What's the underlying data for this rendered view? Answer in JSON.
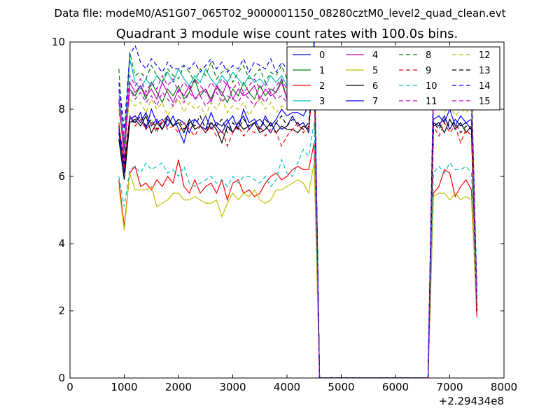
{
  "suptitle": "Data file: modeM0/AS1G07_065T02_9000001150_08280cztM0_level2_quad_clean.evt",
  "chart_data": {
    "type": "line",
    "title": "Quadrant 3 module wise count rates with 100.0s bins.",
    "xlabel": "",
    "ylabel": "",
    "x_offset_label": "+2.29434e8",
    "xlim": [
      0,
      8000
    ],
    "ylim": [
      0,
      10
    ],
    "x_ticks": [
      "0",
      "1000",
      "2000",
      "3000",
      "4000",
      "5000",
      "6000",
      "7000",
      "8000"
    ],
    "y_ticks": [
      "0",
      "2",
      "4",
      "6",
      "8",
      "10"
    ],
    "grid": false,
    "legend": {
      "placement": "top-right",
      "columns": 4
    },
    "x": [
      900,
      1000,
      1100,
      1200,
      1300,
      1400,
      1500,
      1600,
      1700,
      1800,
      1900,
      2000,
      2100,
      2200,
      2300,
      2400,
      2500,
      2600,
      2700,
      2800,
      2900,
      3000,
      3100,
      3200,
      3300,
      3400,
      3500,
      3600,
      3700,
      3800,
      3900,
      4000,
      4100,
      4200,
      4300,
      4400,
      4500,
      4600,
      4700,
      4800,
      4900,
      5000,
      5100,
      5200,
      5300,
      5400,
      5500,
      5600,
      5700,
      5800,
      5900,
      6000,
      6100,
      6200,
      6300,
      6400,
      6500,
      6600,
      6700,
      6800,
      6900,
      7000,
      7100,
      7200,
      7300,
      7400,
      7500
    ],
    "series": [
      {
        "name": "0",
        "color": "#0000bf",
        "dash": "solid",
        "values": [
          7.3,
          6.1,
          7.7,
          7.8,
          7.6,
          7.9,
          7.5,
          7.7,
          7.4,
          7.8,
          7.5,
          7.7,
          7.6,
          7.3,
          7.7,
          7.5,
          7.8,
          7.4,
          7.6,
          7.5,
          7.7,
          7.3,
          7.6,
          7.8,
          7.4,
          7.6,
          7.7,
          7.5,
          7.3,
          7.6,
          7.4,
          7.5,
          7.8,
          7.5,
          7.6,
          7.3,
          9.8,
          0,
          0,
          0,
          0,
          0,
          0,
          0,
          0,
          0,
          0,
          0,
          0,
          0,
          0,
          0,
          0,
          0,
          0,
          0,
          0,
          0,
          7.6,
          7.5,
          7.8,
          7.4,
          7.7,
          7.5,
          7.6,
          7.4,
          1.9
        ]
      },
      {
        "name": "1",
        "color": "#008000",
        "dash": "solid",
        "values": [
          8.0,
          6.8,
          8.6,
          8.4,
          8.7,
          8.3,
          8.8,
          8.5,
          8.2,
          8.6,
          8.4,
          8.7,
          8.3,
          8.5,
          8.9,
          8.4,
          8.6,
          8.3,
          8.7,
          8.5,
          8.2,
          8.6,
          8.4,
          8.8,
          8.5,
          8.3,
          8.7,
          8.4,
          8.6,
          8.5,
          8.9,
          8.3,
          8.6,
          8.7,
          8.4,
          8.6,
          9.6,
          0,
          0,
          0,
          0,
          0,
          0,
          0,
          0,
          0,
          0,
          0,
          0,
          0,
          0,
          0,
          0,
          0,
          0,
          0,
          0,
          0,
          8.5,
          8.4,
          8.7,
          8.5,
          8.3,
          8.6,
          8.4,
          8.7,
          2.3
        ]
      },
      {
        "name": "2",
        "color": "#ff0000",
        "dash": "solid",
        "values": [
          5.9,
          4.5,
          6.1,
          6.3,
          5.7,
          5.8,
          5.6,
          5.9,
          5.7,
          6.0,
          5.8,
          6.5,
          5.7,
          5.5,
          5.9,
          5.5,
          5.7,
          5.8,
          5.5,
          5.9,
          5.3,
          5.8,
          5.9,
          5.5,
          5.6,
          5.4,
          5.5,
          5.8,
          6.0,
          6.1,
          5.9,
          6.0,
          6.2,
          6.3,
          6.2,
          6.2,
          7.0,
          0,
          0,
          0,
          0,
          0,
          0,
          0,
          0,
          0,
          0,
          0,
          0,
          0,
          0,
          0,
          0,
          0,
          0,
          0,
          0,
          0,
          5.5,
          5.7,
          6.2,
          6.1,
          5.4,
          5.7,
          5.9,
          5.6,
          1.8
        ]
      },
      {
        "name": "3",
        "color": "#00bfbf",
        "dash": "solid",
        "values": [
          8.5,
          7.0,
          9.5,
          8.8,
          8.6,
          8.9,
          8.7,
          9.0,
          8.8,
          9.1,
          8.8,
          9.2,
          8.9,
          8.7,
          9.0,
          8.8,
          9.2,
          8.9,
          8.7,
          9.0,
          8.8,
          9.1,
          8.9,
          8.7,
          9.0,
          8.8,
          8.9,
          8.7,
          9.0,
          8.8,
          9.0,
          8.7,
          8.9,
          9.0,
          8.8,
          8.9,
          9.7,
          0,
          0,
          0,
          0,
          0,
          0,
          0,
          0,
          0,
          0,
          0,
          0,
          0,
          0,
          0,
          0,
          0,
          0,
          0,
          0,
          0,
          8.7,
          8.9,
          8.6,
          8.8,
          8.7,
          8.5,
          8.8,
          8.6,
          2.4
        ]
      },
      {
        "name": "4",
        "color": "#bf00bf",
        "dash": "solid",
        "values": [
          8.3,
          6.5,
          8.8,
          8.5,
          8.7,
          8.4,
          8.6,
          8.3,
          8.8,
          8.5,
          8.2,
          8.6,
          8.4,
          8.7,
          8.3,
          8.5,
          8.6,
          8.2,
          8.7,
          8.4,
          8.8,
          8.3,
          8.6,
          8.4,
          8.5,
          8.7,
          8.3,
          8.6,
          8.4,
          8.5,
          8.8,
          8.3,
          8.6,
          8.5,
          8.7,
          8.4,
          9.5,
          0,
          0,
          0,
          0,
          0,
          0,
          0,
          0,
          0,
          0,
          0,
          0,
          0,
          0,
          0,
          0,
          0,
          0,
          0,
          0,
          0,
          8.4,
          8.2,
          8.6,
          8.3,
          8.5,
          8.1,
          8.4,
          8.2,
          2.1
        ]
      },
      {
        "name": "5",
        "color": "#bfbf00",
        "dash": "solid",
        "values": [
          5.7,
          4.4,
          6.1,
          5.6,
          5.6,
          5.6,
          5.7,
          5.1,
          5.2,
          5.3,
          5.5,
          5.5,
          5.3,
          5.3,
          5.4,
          5.3,
          5.2,
          5.2,
          5.3,
          4.8,
          5.2,
          5.5,
          5.3,
          5.5,
          5.4,
          5.6,
          5.3,
          5.2,
          5.3,
          5.6,
          5.6,
          5.7,
          5.8,
          5.9,
          5.8,
          5.5,
          6.4,
          0,
          0,
          0,
          0,
          0,
          0,
          0,
          0,
          0,
          0,
          0,
          0,
          0,
          0,
          0,
          0,
          0,
          0,
          0,
          0,
          0,
          5.4,
          5.5,
          5.5,
          5.3,
          5.5,
          5.3,
          5.4,
          5.3,
          2.0
        ]
      },
      {
        "name": "6",
        "color": "#000000",
        "dash": "solid",
        "values": [
          7.1,
          5.9,
          7.6,
          7.7,
          7.5,
          7.8,
          7.3,
          7.6,
          7.4,
          7.7,
          7.5,
          7.6,
          7.3,
          7.7,
          7.4,
          7.5,
          7.3,
          7.6,
          7.4,
          7.0,
          7.5,
          7.3,
          7.6,
          7.4,
          7.5,
          7.6,
          7.3,
          7.4,
          7.6,
          7.3,
          7.5,
          7.4,
          7.4,
          7.3,
          7.5,
          7.4,
          9.4,
          0,
          0,
          0,
          0,
          0,
          0,
          0,
          0,
          0,
          0,
          0,
          0,
          0,
          0,
          0,
          0,
          0,
          0,
          0,
          0,
          0,
          7.5,
          7.6,
          7.3,
          7.7,
          7.4,
          7.6,
          7.3,
          7.5,
          2.0
        ]
      },
      {
        "name": "7",
        "color": "#0000ff",
        "dash": "solid",
        "values": [
          7.4,
          6.3,
          7.8,
          7.6,
          7.9,
          7.4,
          8.0,
          7.6,
          7.7,
          7.5,
          7.8,
          7.4,
          7.0,
          7.6,
          7.7,
          7.5,
          7.4,
          7.9,
          7.5,
          7.3,
          7.6,
          7.8,
          7.4,
          8.0,
          7.6,
          7.7,
          7.4,
          7.8,
          7.5,
          7.7,
          8.0,
          7.8,
          7.9,
          7.9,
          7.8,
          8.1,
          10.0,
          0,
          0,
          0,
          0,
          0,
          0,
          0,
          0,
          0,
          0,
          0,
          0,
          0,
          0,
          0,
          0,
          0,
          0,
          0,
          0,
          0,
          7.7,
          7.8,
          7.6,
          8.0,
          7.5,
          7.8,
          7.6,
          7.7,
          2.2
        ]
      },
      {
        "name": "8",
        "color": "#008000",
        "dash": "dashed",
        "values": [
          9.2,
          6.8,
          9.7,
          9.0,
          9.1,
          8.9,
          9.3,
          9.0,
          8.8,
          9.2,
          9.0,
          8.9,
          9.3,
          9.1,
          8.8,
          9.2,
          9.0,
          9.4,
          8.9,
          9.1,
          9.2,
          8.8,
          9.1,
          9.3,
          8.9,
          9.0,
          9.2,
          8.8,
          9.1,
          9.0,
          9.3,
          8.9,
          9.2,
          9.0,
          9.4,
          9.1,
          9.9,
          0,
          0,
          0,
          0,
          0,
          0,
          0,
          0,
          0,
          0,
          0,
          0,
          0,
          0,
          0,
          0,
          0,
          0,
          0,
          0,
          0,
          8.9,
          9.0,
          8.8,
          9.1,
          8.9,
          8.7,
          9.0,
          8.9,
          2.5
        ]
      },
      {
        "name": "9",
        "color": "#ff0000",
        "dash": "dashed",
        "values": [
          7.6,
          6.2,
          7.8,
          7.5,
          7.7,
          7.4,
          7.6,
          7.3,
          7.7,
          7.4,
          7.5,
          7.3,
          7.6,
          7.4,
          7.2,
          7.5,
          7.3,
          7.5,
          7.2,
          7.4,
          6.9,
          7.3,
          7.5,
          7.2,
          7.4,
          7.3,
          7.5,
          7.2,
          7.4,
          7.3,
          6.9,
          7.2,
          7.4,
          7.6,
          7.3,
          7.5,
          8.8,
          0,
          0,
          0,
          0,
          0,
          0,
          0,
          0,
          0,
          0,
          0,
          0,
          0,
          0,
          0,
          0,
          0,
          0,
          0,
          0,
          0,
          7.5,
          7.2,
          7.6,
          7.3,
          7.5,
          7.0,
          7.4,
          7.2,
          2.0
        ]
      },
      {
        "name": "10",
        "color": "#00bfbf",
        "dash": "dashed",
        "values": [
          6.0,
          5.1,
          6.2,
          6.3,
          6.1,
          6.4,
          6.2,
          6.3,
          6.4,
          6.1,
          6.2,
          6.0,
          6.3,
          5.8,
          5.7,
          5.8,
          5.9,
          6.0,
          5.8,
          5.9,
          5.7,
          6.0,
          5.8,
          6.0,
          6.0,
          5.9,
          5.8,
          6.0,
          5.7,
          5.9,
          6.5,
          6.1,
          6.0,
          6.4,
          6.8,
          6.6,
          7.6,
          0,
          0,
          0,
          0,
          0,
          0,
          0,
          0,
          0,
          0,
          0,
          0,
          0,
          0,
          0,
          0,
          0,
          0,
          0,
          0,
          0,
          6.1,
          6.3,
          6.1,
          6.4,
          6.2,
          6.2,
          6.3,
          6.1,
          2.3
        ]
      },
      {
        "name": "11",
        "color": "#bf00bf",
        "dash": "dashed",
        "values": [
          8.6,
          7.1,
          9.0,
          8.7,
          8.9,
          8.5,
          8.8,
          8.6,
          9.0,
          8.7,
          8.9,
          8.5,
          8.8,
          8.6,
          8.9,
          8.7,
          8.5,
          8.8,
          8.6,
          8.9,
          8.7,
          8.6,
          8.8,
          8.5,
          8.7,
          8.9,
          8.6,
          8.8,
          8.5,
          8.7,
          8.9,
          8.6,
          8.8,
          8.7,
          8.9,
          8.6,
          9.6,
          0,
          0,
          0,
          0,
          0,
          0,
          0,
          0,
          0,
          0,
          0,
          0,
          0,
          0,
          0,
          0,
          0,
          0,
          0,
          0,
          0,
          8.6,
          8.8,
          8.5,
          8.7,
          8.4,
          8.6,
          8.3,
          8.5,
          2.2
        ]
      },
      {
        "name": "12",
        "color": "#bfbf00",
        "dash": "dashed",
        "values": [
          8.0,
          6.9,
          8.3,
          8.1,
          8.2,
          7.9,
          8.3,
          8.0,
          8.2,
          7.8,
          8.1,
          8.3,
          7.9,
          8.2,
          8.0,
          8.1,
          7.8,
          8.2,
          8.0,
          8.3,
          7.9,
          8.1,
          8.0,
          8.2,
          7.8,
          8.1,
          8.3,
          8.0,
          8.2,
          7.9,
          8.1,
          8.0,
          8.3,
          8.1,
          8.2,
          8.0,
          9.3,
          0,
          0,
          0,
          0,
          0,
          0,
          0,
          0,
          0,
          0,
          0,
          0,
          0,
          0,
          0,
          0,
          0,
          0,
          0,
          0,
          0,
          8.0,
          8.2,
          7.9,
          8.1,
          7.8,
          8.0,
          7.9,
          8.1,
          2.1
        ]
      },
      {
        "name": "13",
        "color": "#000000",
        "dash": "dashed",
        "values": [
          7.5,
          6.4,
          7.7,
          7.6,
          7.8,
          7.5,
          7.7,
          7.4,
          7.6,
          7.8,
          7.5,
          7.7,
          7.4,
          7.6,
          7.5,
          7.8,
          7.4,
          7.6,
          7.5,
          7.7,
          7.3,
          7.6,
          7.4,
          7.7,
          7.5,
          7.6,
          7.4,
          7.7,
          7.5,
          7.6,
          7.8,
          7.5,
          7.7,
          7.6,
          7.4,
          7.6,
          9.1,
          0,
          0,
          0,
          0,
          0,
          0,
          0,
          0,
          0,
          0,
          0,
          0,
          0,
          0,
          0,
          0,
          0,
          0,
          0,
          0,
          0,
          7.6,
          7.4,
          7.7,
          7.5,
          7.6,
          7.3,
          7.5,
          7.4,
          2.0
        ]
      },
      {
        "name": "14",
        "color": "#0000ff",
        "dash": "dashed",
        "values": [
          8.8,
          7.4,
          9.6,
          9.9,
          9.4,
          9.2,
          9.5,
          9.3,
          9.1,
          9.4,
          9.2,
          9.2,
          9.3,
          9.2,
          9.4,
          9.1,
          9.3,
          9.5,
          9.2,
          9.4,
          9.1,
          9.3,
          9.2,
          9.5,
          9.1,
          9.4,
          9.3,
          9.2,
          9.5,
          9.1,
          9.4,
          9.2,
          9.3,
          9.5,
          9.6,
          9.4,
          10.0,
          0,
          0,
          0,
          0,
          0,
          0,
          0,
          0,
          0,
          0,
          0,
          0,
          0,
          0,
          0,
          0,
          0,
          0,
          0,
          0,
          0,
          9.1,
          9.0,
          8.8,
          8.9,
          8.7,
          8.5,
          8.6,
          8.5,
          2.6
        ]
      },
      {
        "name": "15",
        "color": "#bf00bf",
        "dash": "dashed",
        "values": [
          8.2,
          6.9,
          8.6,
          8.3,
          8.5,
          8.2,
          8.4,
          8.1,
          8.5,
          8.3,
          8.1,
          8.4,
          8.2,
          8.5,
          8.3,
          8.4,
          8.1,
          8.3,
          8.5,
          8.2,
          8.4,
          8.3,
          8.2,
          8.5,
          8.3,
          8.1,
          8.4,
          8.2,
          8.5,
          8.3,
          8.4,
          8.2,
          8.3,
          8.5,
          8.2,
          8.4,
          9.4,
          0,
          0,
          0,
          0,
          0,
          0,
          0,
          0,
          0,
          0,
          0,
          0,
          0,
          0,
          0,
          0,
          0,
          0,
          0,
          0,
          0,
          8.3,
          8.1,
          8.4,
          8.2,
          8.3,
          8.0,
          8.2,
          8.1,
          2.2
        ]
      }
    ]
  }
}
